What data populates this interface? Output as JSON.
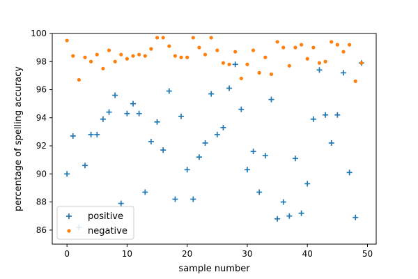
{
  "chart_data": {
    "type": "scatter",
    "xlabel": "sample number",
    "ylabel": "percentage of spelling accuracy",
    "xlim": [
      -2.45,
      51.45
    ],
    "ylim": [
      85.0,
      100.0
    ],
    "xticks": [
      0,
      10,
      20,
      30,
      40,
      50
    ],
    "yticks": [
      86,
      88,
      90,
      92,
      94,
      96,
      98,
      100
    ],
    "legend_position": "lower-left",
    "series": [
      {
        "name": "positive",
        "marker": "plus",
        "color": "#1f77b4",
        "x": [
          0,
          1,
          2,
          3,
          4,
          5,
          6,
          7,
          8,
          9,
          10,
          11,
          12,
          13,
          14,
          15,
          16,
          17,
          18,
          19,
          20,
          21,
          22,
          23,
          24,
          25,
          26,
          27,
          28,
          29,
          30,
          31,
          32,
          33,
          34,
          35,
          36,
          37,
          38,
          39,
          40,
          41,
          42,
          43,
          44,
          45,
          46,
          47,
          48,
          49
        ],
        "y": [
          90.0,
          92.7,
          86.2,
          90.6,
          92.8,
          92.8,
          93.9,
          94.4,
          95.6,
          87.9,
          94.3,
          95.0,
          94.3,
          88.7,
          92.3,
          93.7,
          91.7,
          95.9,
          88.2,
          94.1,
          90.3,
          88.2,
          91.2,
          92.2,
          95.7,
          92.8,
          93.3,
          96.1,
          97.8,
          94.6,
          90.3,
          91.6,
          88.7,
          91.3,
          95.3,
          86.8,
          88.0,
          87.0,
          91.1,
          87.2,
          89.3,
          93.9,
          97.4,
          94.2,
          92.2,
          94.2,
          97.2,
          90.1,
          86.9,
          97.9
        ]
      },
      {
        "name": "negative",
        "marker": "dot",
        "color": "#ff7f0e",
        "x": [
          0,
          1,
          2,
          3,
          4,
          5,
          6,
          7,
          8,
          9,
          10,
          11,
          12,
          13,
          14,
          15,
          16,
          17,
          18,
          19,
          20,
          21,
          22,
          23,
          24,
          25,
          26,
          27,
          28,
          29,
          30,
          31,
          32,
          33,
          34,
          35,
          36,
          37,
          38,
          39,
          40,
          41,
          42,
          43,
          44,
          45,
          46,
          47,
          48,
          49
        ],
        "y": [
          99.5,
          98.4,
          96.7,
          98.3,
          98.0,
          98.5,
          97.5,
          98.8,
          98.0,
          98.5,
          98.2,
          98.4,
          98.5,
          98.4,
          98.9,
          99.7,
          99.7,
          99.1,
          98.4,
          98.3,
          98.3,
          99.7,
          99.0,
          98.5,
          99.7,
          98.8,
          97.9,
          97.8,
          98.7,
          96.8,
          97.8,
          98.8,
          97.2,
          98.3,
          97.1,
          99.4,
          99.0,
          97.7,
          99.0,
          99.2,
          98.2,
          99.0,
          97.9,
          98.0,
          99.4,
          99.2,
          98.7,
          99.2,
          96.6,
          97.9
        ]
      }
    ]
  }
}
